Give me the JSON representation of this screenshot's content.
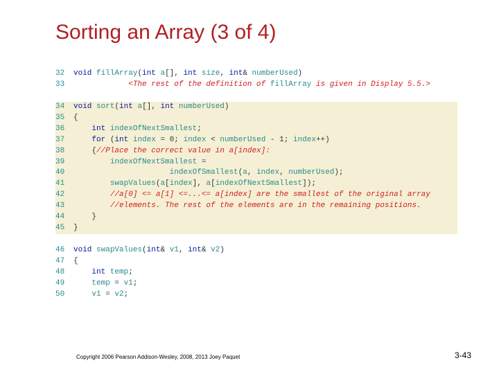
{
  "title": {
    "text": "Sorting an Array (3 of 4)",
    "color": "#b01f24"
  },
  "colors": {
    "lineNumber": "#2a8a8a",
    "keyword": "#0015a0",
    "func": "#2a8a8a",
    "type": "#0015a0",
    "comment": "#d02020",
    "text": "#333333",
    "highlight": "#f5f0d5"
  },
  "code": {
    "lines": [
      {
        "n": "32",
        "hl": false,
        "html": "<span class='kw'>void</span> <span class='fn'>fillArray</span>(<span class='kw'>int</span> <span class='fn'>a</span>[], <span class='kw'>int</span> <span class='fn'>size</span>, <span class='kw'>int</span>&amp; <span class='fn'>numberUsed</span>)"
      },
      {
        "n": "33",
        "hl": false,
        "html": "            <span class='cm'>&lt;The rest of the definition of</span> <span class='fn'>fillArray</span> <span class='cm'>is given in Display 5.5.&gt;</span>"
      },
      {
        "n": "",
        "hl": false,
        "html": ""
      },
      {
        "n": "34",
        "hl": true,
        "html": "<span class='kw'>void</span> <span class='fn'>sort</span>(<span class='kw'>int</span> <span class='fn'>a</span>[], <span class='kw'>int</span> <span class='fn'>numberUsed</span>)"
      },
      {
        "n": "35",
        "hl": true,
        "html": "{"
      },
      {
        "n": "36",
        "hl": true,
        "html": "    <span class='kw'>int</span> <span class='fn'>indexOfNextSmallest</span>;"
      },
      {
        "n": "37",
        "hl": true,
        "html": "    <span class='kw'>for</span> (<span class='kw'>int</span> <span class='fn'>index</span> = 0; <span class='fn'>index</span> &lt; <span class='fn'>numberUsed</span> - 1; <span class='fn'>index</span>++)"
      },
      {
        "n": "38",
        "hl": true,
        "html": "    {<span class='cm'>//Place the correct value in a[index]:</span>"
      },
      {
        "n": "39",
        "hl": true,
        "html": "        <span class='fn'>indexOfNextSmallest</span> ="
      },
      {
        "n": "40",
        "hl": true,
        "html": "                     <span class='fn'>indexOfSmallest</span>(<span class='fn'>a</span>, <span class='fn'>index</span>, <span class='fn'>numberUsed</span>);"
      },
      {
        "n": "41",
        "hl": true,
        "html": "        <span class='fn'>swapValues</span>(<span class='fn'>a</span>[<span class='fn'>index</span>], <span class='fn'>a</span>[<span class='fn'>indexOfNextSmallest</span>]);"
      },
      {
        "n": "42",
        "hl": true,
        "html": "        <span class='cm'>//a[0] &lt;= a[1] &lt;=...&lt;= a[index] are the smallest of the original array</span>"
      },
      {
        "n": "43",
        "hl": true,
        "html": "        <span class='cm'>//elements. The rest of the elements are in the remaining positions.</span>"
      },
      {
        "n": "44",
        "hl": true,
        "html": "    }"
      },
      {
        "n": "45",
        "hl": true,
        "html": "}"
      },
      {
        "n": "",
        "hl": false,
        "html": ""
      },
      {
        "n": "46",
        "hl": false,
        "html": "<span class='kw'>void</span> <span class='fn'>swapValues</span>(<span class='kw'>int</span>&amp; <span class='fn'>v1</span>, <span class='kw'>int</span>&amp; <span class='fn'>v2</span>)"
      },
      {
        "n": "47",
        "hl": false,
        "html": "{"
      },
      {
        "n": "48",
        "hl": false,
        "html": "    <span class='kw'>int</span> <span class='fn'>temp</span>;"
      },
      {
        "n": "49",
        "hl": false,
        "html": "    <span class='fn'>temp</span> = <span class='fn'>v1</span>;"
      },
      {
        "n": "50",
        "hl": false,
        "html": "    <span class='fn'>v1</span> = <span class='fn'>v2</span>;"
      }
    ]
  },
  "footer": "Copyright 2006 Pearson Addison-Wesley, 2008, 2013 Joey Paquet",
  "pageNumber": "3-43"
}
